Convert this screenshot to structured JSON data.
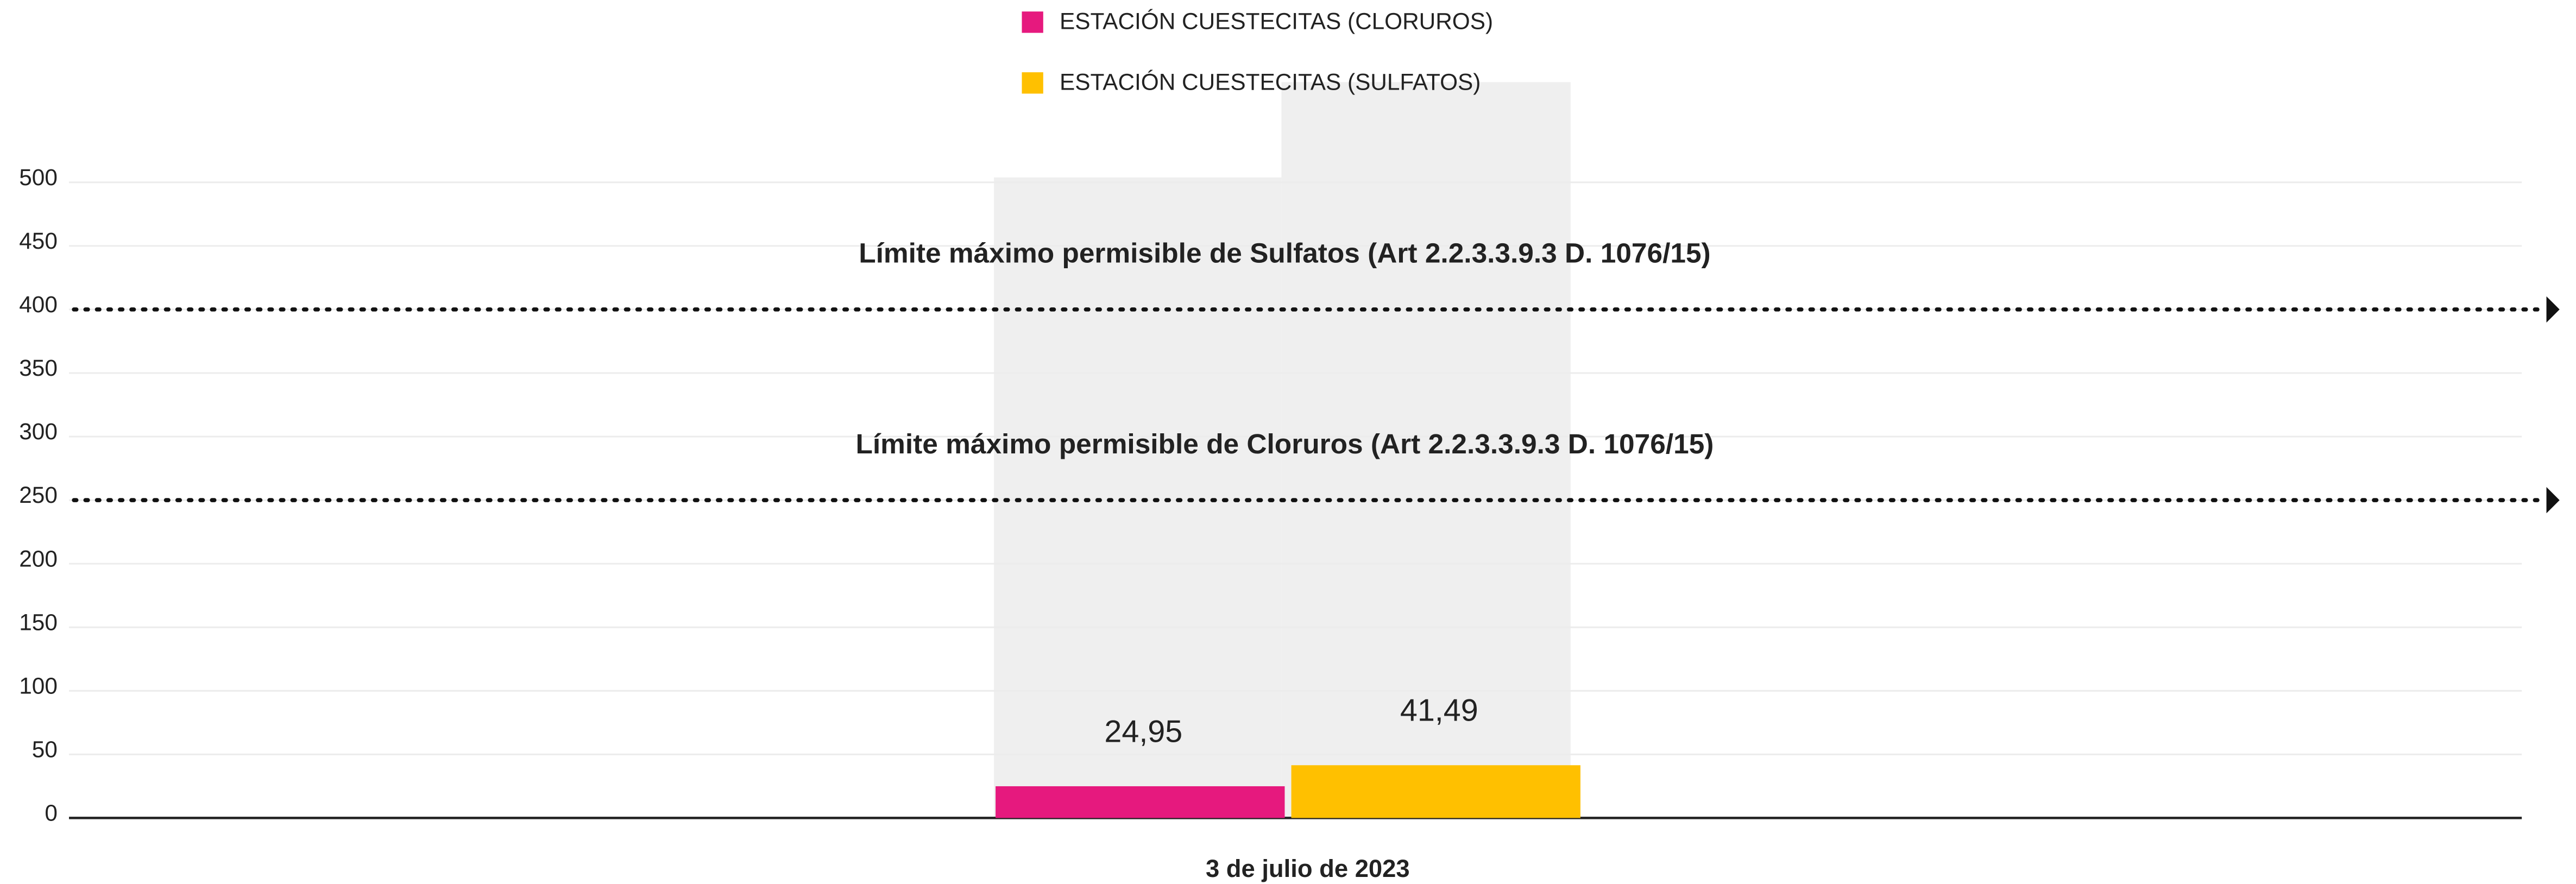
{
  "chart_data": {
    "type": "bar",
    "categories": [
      "3 de julio de 2023"
    ],
    "series": [
      {
        "name": "ESTACIÓN CUESTECITAS (CLORUROS)",
        "color": "#e6197e",
        "values": [
          24.95
        ],
        "value_labels": [
          "24,95"
        ]
      },
      {
        "name": "ESTACIÓN CUESTECITAS (SULFATOS)",
        "color": "#ffc000",
        "values": [
          41.49
        ],
        "value_labels": [
          "41,49"
        ]
      }
    ],
    "ylim": [
      0,
      500
    ],
    "yticks": [
      0,
      50,
      100,
      150,
      200,
      250,
      300,
      350,
      400,
      450,
      500
    ],
    "grid": true,
    "reference_lines": [
      {
        "value": 400,
        "label": "Límite máximo permisible de Sulfatos (Art 2.2.3.3.9.3 D. 1076/15)"
      },
      {
        "value": 250,
        "label": "Límite máximo permisible de Cloruros (Art 2.2.3.3.9.3 D. 1076/15)"
      }
    ],
    "legend": "top"
  }
}
